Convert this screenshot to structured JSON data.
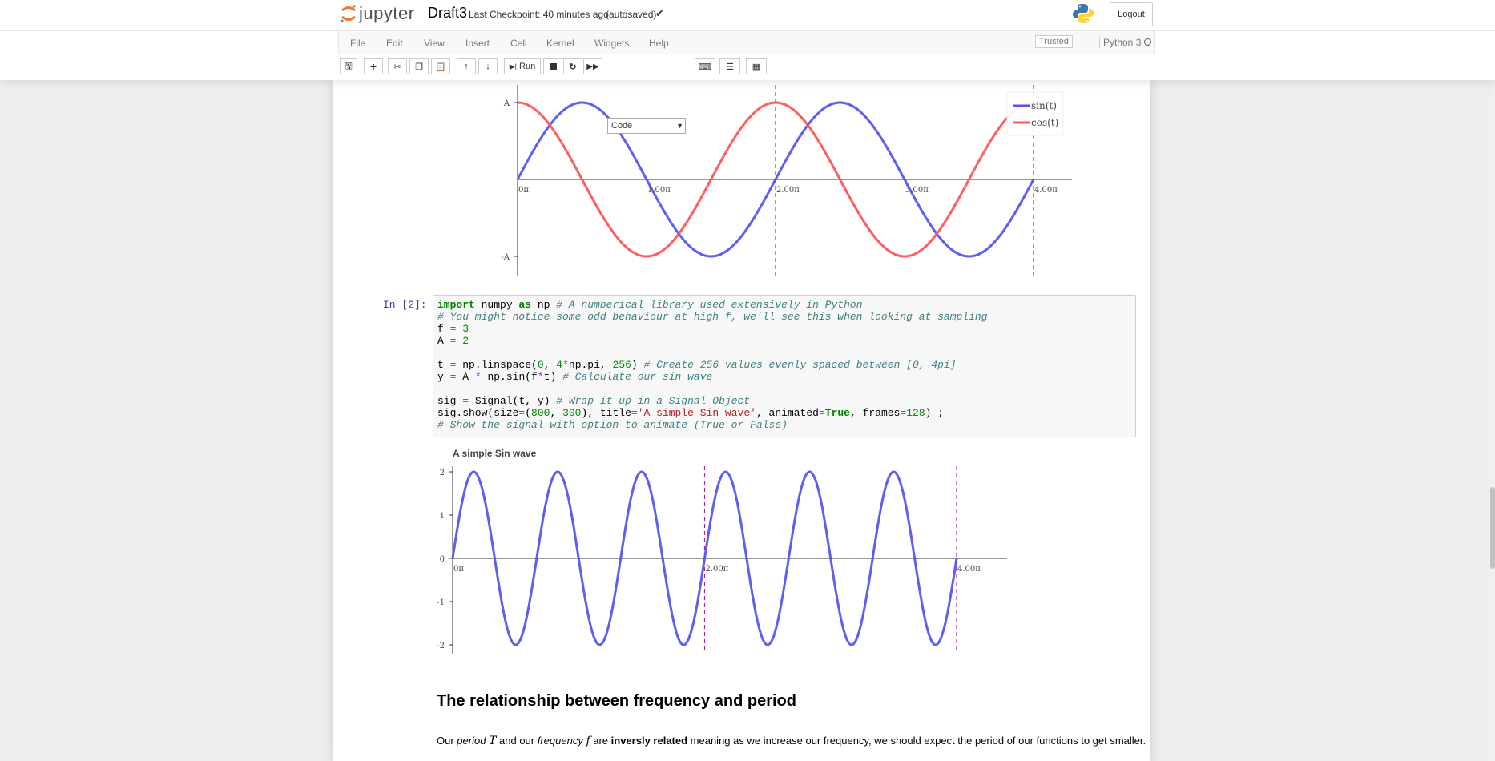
{
  "header": {
    "logo_text": "jupyter",
    "notebook_name": "Draft3",
    "checkpoint": "Last Checkpoint: 40 minutes ago",
    "autosaved": "(autosaved)",
    "logout": "Logout"
  },
  "menu": [
    "File",
    "Edit",
    "View",
    "Insert",
    "Cell",
    "Kernel",
    "Widgets",
    "Help"
  ],
  "status": {
    "trusted": "Trusted",
    "kernel": "Python 3"
  },
  "toolbar": {
    "run_label": "Run",
    "cell_type": "Code"
  },
  "cell": {
    "prompt": "In [2]:"
  },
  "chart_data": [
    {
      "type": "line",
      "title": "",
      "x_ticks": [
        "0π",
        "1.00π",
        "2.00π",
        "3.00π",
        "4.00π"
      ],
      "y_ticks": [
        "A",
        "-A"
      ],
      "legend": [
        "sin(t)",
        "cos(t)"
      ],
      "legend_position": "top-right",
      "series": [
        {
          "name": "sin(t)",
          "color": "#5555ee",
          "function": "A*sin(t)",
          "x_range": [
            0,
            12.566
          ]
        },
        {
          "name": "cos(t)",
          "color": "#ff5555",
          "function": "A*cos(t)",
          "x_range": [
            0,
            12.566
          ]
        }
      ],
      "vlines": [
        "2.00π",
        "4.00π"
      ],
      "vline_color": "#aa2299"
    },
    {
      "type": "line",
      "title": "A simple Sin wave",
      "x_ticks": [
        "0π",
        "2.00π",
        "4.00π"
      ],
      "y_ticks": [
        2,
        1,
        0,
        -1,
        -2
      ],
      "ylim": [
        -2,
        2
      ],
      "series": [
        {
          "name": "",
          "color": "#5555ee",
          "function": "2*sin(3*t)",
          "x_range": [
            0,
            12.566
          ]
        }
      ],
      "vlines": [
        "2.00π",
        "4.00π"
      ],
      "vline_color": "#aa2299"
    }
  ],
  "markdown": {
    "heading": "The relationship between frequency and period",
    "p_start": "Our ",
    "p_period_word": "period",
    "p_period_sym": "T",
    "p_and": " and our ",
    "p_freq_word": "frequency",
    "p_freq_sym": "f",
    "p_are": " are ",
    "p_bold": "inversly related",
    "p_end": " meaning as we increase our frequency, we should expect the period of our functions to get smaller."
  }
}
